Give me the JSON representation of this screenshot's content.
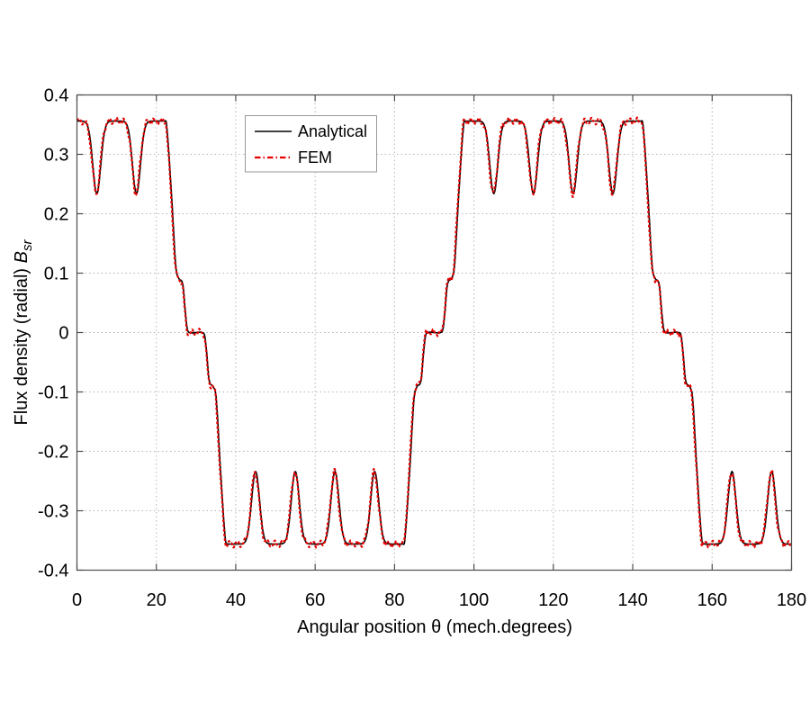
{
  "figure": {
    "background": "#ffffff"
  },
  "chart_data": {
    "type": "line",
    "title": "",
    "xlabel": "Angular position θ (mech.degrees)",
    "ylabel": {
      "text": "Flux density (radial) ",
      "symbol": "B",
      "subscript": "sr"
    },
    "xlim": [
      0,
      180
    ],
    "ylim": [
      -0.4,
      0.4
    ],
    "xticks": {
      "values": [
        0,
        20,
        40,
        60,
        80,
        100,
        120,
        140,
        160,
        180
      ],
      "labels": [
        "0",
        "20",
        "40",
        "60",
        "80",
        "100",
        "120",
        "140",
        "160",
        "180"
      ]
    },
    "yticks": {
      "values": [
        0.4,
        0.3,
        0.2,
        0.1,
        0,
        -0.1,
        -0.2,
        -0.3,
        -0.4
      ],
      "labels": [
        "0.4",
        "0.3",
        "0.2",
        "0.1",
        "0",
        "-0.1",
        "-0.2",
        "-0.3",
        "-0.4"
      ]
    },
    "grid": {
      "on": true,
      "style": "dotted",
      "color": "#b5b5b5"
    },
    "axis_color": "#4d4d4d",
    "series": [
      {
        "name": "Analytical",
        "color": "#000000",
        "line_style": "solid",
        "line_width": 1.6
      },
      {
        "name": "FEM",
        "color": "#e60000",
        "line_style": "dashdot",
        "line_width": 2.2
      }
    ],
    "legend": {
      "position": "upper-left-inside",
      "border_color": "#999999",
      "background": "#ffffff"
    },
    "waveform": {
      "description": "Periodic trapezoidal radial flux-density wave with slotting notches; both series follow this shape, FEM adds small ripple",
      "flat_level": 0.356,
      "notch_level": 0.234,
      "notch_sigma_deg": 1.0,
      "notch_positions_deg": [
        5,
        15,
        45,
        55,
        65,
        75,
        105,
        115,
        125,
        135,
        165,
        175
      ],
      "flat_regions": [
        {
          "from": 0,
          "to": 22,
          "level": 0.356
        },
        {
          "from": 38,
          "to": 82,
          "level": -0.356
        },
        {
          "from": 98,
          "to": 142,
          "level": 0.356
        },
        {
          "from": 158,
          "to": 180,
          "level": -0.356
        }
      ],
      "transitions": [
        {
          "from": 22,
          "to": 38,
          "center": 30,
          "type": "fall"
        },
        {
          "from": 82,
          "to": 98,
          "center": 90,
          "type": "rise"
        },
        {
          "from": 142,
          "to": 158,
          "center": 150,
          "type": "fall"
        }
      ],
      "fall_profile_points": [
        [
          -8.0,
          0.356
        ],
        [
          -7.4,
          0.349
        ],
        [
          -6.2,
          0.235
        ],
        [
          -5.1,
          0.112
        ],
        [
          -4.4,
          0.092
        ],
        [
          -3.3,
          0.08
        ],
        [
          -2.7,
          0.035
        ],
        [
          -2.2,
          0.006
        ],
        [
          -1.6,
          0.0
        ],
        [
          0.0,
          0.0
        ],
        [
          1.6,
          0.0
        ],
        [
          2.2,
          -0.006
        ],
        [
          2.7,
          -0.035
        ],
        [
          3.3,
          -0.08
        ],
        [
          4.4,
          -0.092
        ],
        [
          5.1,
          -0.112
        ],
        [
          6.2,
          -0.235
        ],
        [
          7.4,
          -0.349
        ],
        [
          8.0,
          -0.356
        ]
      ],
      "fem_ripple": {
        "amp1": 0.0042,
        "period1": 1.9,
        "amp2": 0.0018,
        "period2": 0.83,
        "phase2": 1.3,
        "x_shift": 0.12
      },
      "sample_step_deg": 0.12
    }
  }
}
